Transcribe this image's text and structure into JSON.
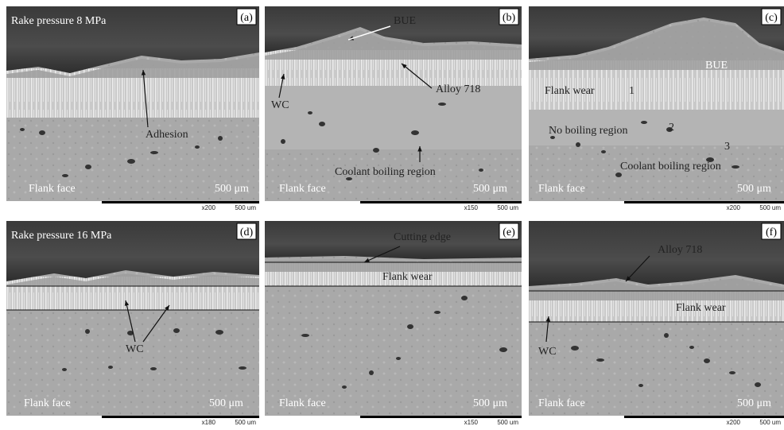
{
  "panels": [
    {
      "label": "(a)",
      "annotations": [
        "Rake pressure 8 MPa",
        "Adhesion",
        "Flank face",
        "500 μm"
      ],
      "magnification": "x200",
      "scale_bar": "500 um"
    },
    {
      "label": "(b)",
      "annotations": [
        "BUE",
        "WC",
        "Alloy 718",
        "Coolant boiling region",
        "Flank face",
        "500 μm"
      ],
      "magnification": "x150",
      "scale_bar": "500 um"
    },
    {
      "label": "(c)",
      "annotations": [
        "BUE",
        "Flank wear",
        "1",
        "No boiling region",
        "2",
        "3",
        "Coolant boiling region",
        "Flank face",
        "500 μm"
      ],
      "magnification": "x200",
      "scale_bar": "500 um"
    },
    {
      "label": "(d)",
      "annotations": [
        "Rake pressure 16 MPa",
        "WC",
        "Flank face",
        "500 μm"
      ],
      "magnification": "x180",
      "scale_bar": "500 um"
    },
    {
      "label": "(e)",
      "annotations": [
        "Cutting edge",
        "Flank wear",
        "Flank face",
        "500 μm"
      ],
      "magnification": "x150",
      "scale_bar": "500 um"
    },
    {
      "label": "(f)",
      "annotations": [
        "Alloy 718",
        "Flank wear",
        "WC",
        "Flank face",
        "500 μm"
      ],
      "magnification": "x200",
      "scale_bar": "500 um"
    }
  ]
}
